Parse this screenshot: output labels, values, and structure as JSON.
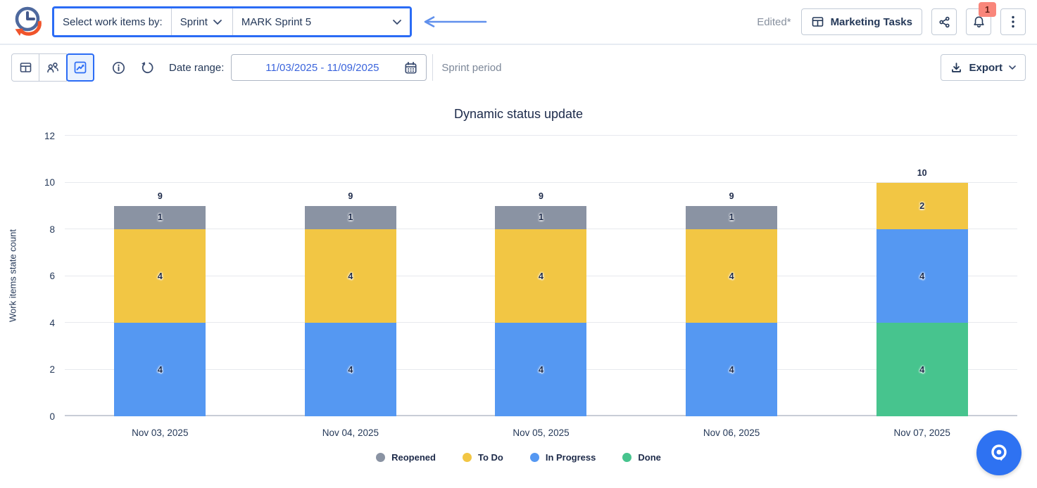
{
  "topbar": {
    "select_label": "Select work items by:",
    "mode_value": "Sprint",
    "sprint_value": "MARK Sprint 5",
    "edited_text": "Edited*",
    "board_button_label": "Marketing Tasks",
    "notification_badge": "1"
  },
  "toolbar": {
    "date_range_label": "Date range:",
    "date_range_value": "11/03/2025 - 11/09/2025",
    "period_hint": "Sprint period",
    "export_label": "Export"
  },
  "colors": {
    "accent_blue": "#2B6CF5",
    "pointer_arrow": "#6090EC",
    "badge_bg": "#F9867B",
    "badge_text": "#601E16",
    "navy_text": "#243858",
    "muted_text": "#7C8798",
    "date_text": "#3A64DC",
    "fab_blue": "#2E72F2"
  },
  "chart_data": {
    "type": "bar",
    "variant": "stacked",
    "title": "Dynamic status update",
    "xlabel": "",
    "ylabel": "Work items state count",
    "ylim": [
      0,
      12
    ],
    "yticks": [
      0,
      2,
      4,
      6,
      8,
      10,
      12
    ],
    "grid": true,
    "legend_position": "bottom",
    "categories": [
      "Nov 03, 2025",
      "Nov 04, 2025",
      "Nov 05, 2025",
      "Nov 06, 2025",
      "Nov 07, 2025"
    ],
    "series": [
      {
        "name": "Reopened",
        "color": "#8A93A3",
        "values": [
          1,
          1,
          1,
          1,
          0
        ]
      },
      {
        "name": "To Do",
        "color": "#F2C644",
        "values": [
          4,
          4,
          4,
          4,
          2
        ]
      },
      {
        "name": "In Progress",
        "color": "#5598F2",
        "values": [
          4,
          4,
          4,
          4,
          4
        ]
      },
      {
        "name": "Done",
        "color": "#47C48E",
        "values": [
          0,
          0,
          0,
          0,
          4
        ]
      }
    ],
    "totals": [
      9,
      9,
      9,
      9,
      10
    ],
    "stack_order_bottom_to_top": [
      "Done",
      "In Progress",
      "To Do",
      "Reopened"
    ],
    "zero_label_at_baseline_for": "Done",
    "legend": [
      "Reopened",
      "To Do",
      "In Progress",
      "Done"
    ]
  }
}
